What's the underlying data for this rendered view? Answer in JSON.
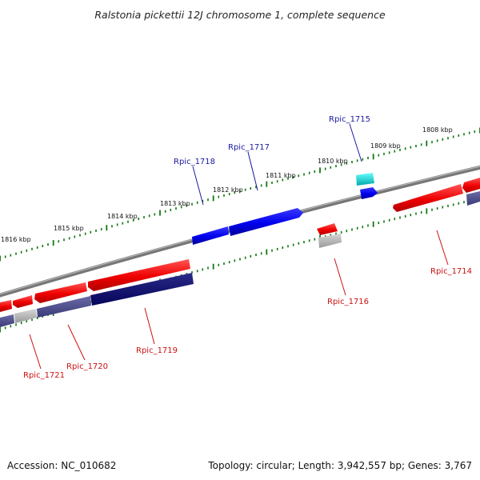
{
  "title": "Ralstonia pickettii 12J chromosome 1, complete sequence",
  "footer": {
    "accession": "Accession: NC_010682",
    "summary": "Topology: circular; Length: 3,942,557 bp; Genes: 3,767"
  },
  "kbp_labels": [
    "1808 kbp",
    "1809 kbp",
    "1810 kbp",
    "1811 kbp",
    "1812 kbp",
    "1813 kbp",
    "1814 kbp",
    "1815 kbp",
    "1816 kbp"
  ],
  "genes_top": [
    {
      "tag": "Rpic_1715"
    },
    {
      "tag": "Rpic_1717"
    },
    {
      "tag": "Rpic_1718"
    }
  ],
  "genes_bottom": [
    {
      "tag": "Rpic_1714"
    },
    {
      "tag": "Rpic_1716"
    },
    {
      "tag": "Rpic_1719"
    },
    {
      "tag": "Rpic_1720"
    },
    {
      "tag": "Rpic_1721"
    }
  ],
  "colors": {
    "cds_forward": "#0000ee",
    "cds_reverse": "#ee0000",
    "cds_highlight": "#00cccc",
    "tick": "#117711",
    "backbone": "#777777",
    "label_blue": "#1a1aa0",
    "label_red": "#cc1111",
    "ring_dark": "#0a0a6e",
    "ring_mid": "#4a4a88",
    "ring_grey": "#aaaaaa"
  }
}
